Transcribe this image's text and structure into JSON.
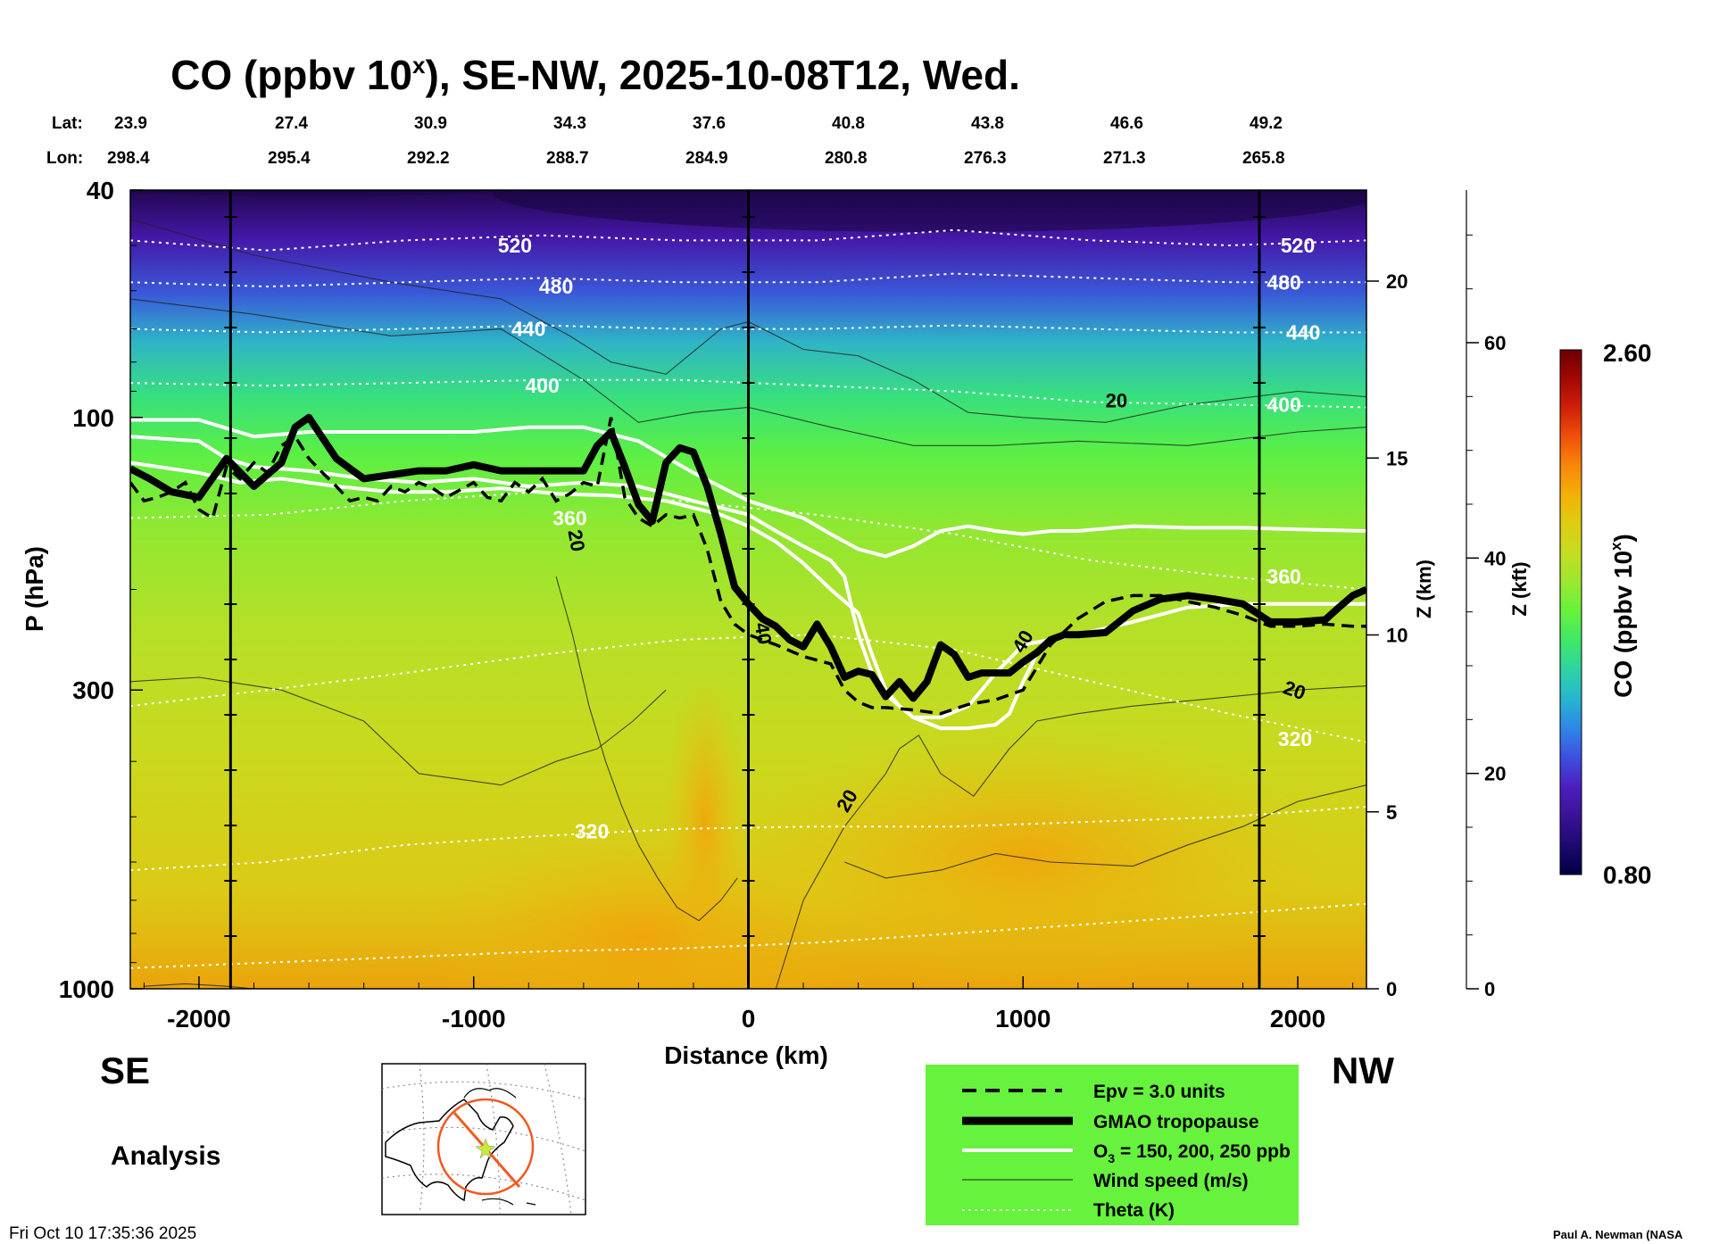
{
  "chart_data": {
    "type": "heatmap",
    "title_prefix": "CO (ppbv 10",
    "title_sup": "x",
    "title_suffix": "), SE-NW, 2025-10-08T12, Wed.",
    "xlabel": "Distance (km)",
    "ylabel": "P (hPa)",
    "z_km_label": "Z (km)",
    "z_kft_label": "Z (kft)",
    "colorbar_label_prefix": "CO (ppbv 10",
    "colorbar_label_sup": "x",
    "colorbar_label_suffix": ")",
    "colorbar_max": "2.60",
    "colorbar_min": "0.80",
    "colorbar_range": [
      0.8,
      2.6
    ],
    "xlim": [
      -2250,
      2250
    ],
    "ylim_hpa": [
      1000,
      40
    ],
    "y_scale": "log",
    "x_ticks": [
      {
        "value": -2000,
        "label": "-2000"
      },
      {
        "value": -1000,
        "label": "-1000"
      },
      {
        "value": 0,
        "label": "0"
      },
      {
        "value": 1000,
        "label": "1000"
      },
      {
        "value": 2000,
        "label": "2000"
      }
    ],
    "p_ticks": [
      {
        "value": 40,
        "label": "40"
      },
      {
        "value": 100,
        "label": "100"
      },
      {
        "value": 300,
        "label": "300"
      },
      {
        "value": 1000,
        "label": "1000"
      }
    ],
    "z_km_ticks": [
      {
        "value": 0,
        "label": "0"
      },
      {
        "value": 5,
        "label": "5"
      },
      {
        "value": 10,
        "label": "10"
      },
      {
        "value": 15,
        "label": "15"
      },
      {
        "value": 20,
        "label": "20"
      }
    ],
    "z_kft_ticks": [
      {
        "value": 0,
        "label": "0"
      },
      {
        "value": 20,
        "label": "20"
      },
      {
        "value": 40,
        "label": "40"
      },
      {
        "value": 60,
        "label": "60"
      }
    ],
    "lat_label": "Lat:",
    "lon_label": "Lon:",
    "lat_values": [
      "23.9",
      "27.4",
      "30.9",
      "34.3",
      "37.6",
      "40.8",
      "43.8",
      "46.6",
      "49.2"
    ],
    "lon_values": [
      "298.4",
      "295.4",
      "292.2",
      "288.7",
      "284.9",
      "280.8",
      "276.3",
      "271.3",
      "265.8"
    ],
    "theta_contours": [
      {
        "label": "520",
        "p": [
          49,
          51,
          49,
          48,
          49,
          49,
          47,
          49,
          50,
          49
        ]
      },
      {
        "label": "480",
        "p": [
          58,
          59,
          58,
          57,
          58,
          58,
          56,
          57,
          58,
          58
        ]
      },
      {
        "label": "440",
        "p": [
          70,
          71,
          70,
          69,
          70,
          70,
          69,
          70,
          71,
          71
        ]
      },
      {
        "label": "400",
        "p": [
          87,
          88,
          87,
          86,
          86,
          88,
          90,
          94,
          95,
          96
        ]
      },
      {
        "label": "360",
        "p": [
          150,
          148,
          140,
          135,
          140,
          148,
          160,
          178,
          190,
          200
        ]
      },
      {
        "label": "320",
        "p": [
          320,
          300,
          280,
          260,
          245,
          240,
          255,
          290,
          330,
          370
        ]
      },
      {
        "label": "320",
        "p": [
          620,
          600,
          560,
          540,
          525,
          520,
          520,
          510,
          500,
          480
        ]
      },
      {
        "label": "",
        "p": [
          920,
          900,
          880,
          860,
          850,
          830,
          800,
          770,
          740,
          710
        ]
      }
    ],
    "theta_x": [
      -2250,
      -1750,
      -1250,
      -750,
      -250,
      250,
      750,
      1250,
      1750,
      2250
    ],
    "tropopause": {
      "name": "GMAO tropopause",
      "x": [
        -2250,
        -2180,
        -2100,
        -2000,
        -1900,
        -1800,
        -1700,
        -1650,
        -1600,
        -1500,
        -1400,
        -1300,
        -1200,
        -1100,
        -1000,
        -900,
        -800,
        -700,
        -600,
        -550,
        -500,
        -450,
        -400,
        -350,
        -300,
        -250,
        -200,
        -150,
        -100,
        -50,
        0,
        50,
        100,
        150,
        200,
        250,
        300,
        350,
        400,
        450,
        500,
        550,
        600,
        650,
        700,
        750,
        800,
        850,
        900,
        950,
        1000,
        1050,
        1100,
        1150,
        1200,
        1300,
        1400,
        1500,
        1600,
        1700,
        1800,
        1900,
        2000,
        2100,
        2150,
        2200,
        2250
      ],
      "p": [
        123,
        128,
        135,
        138,
        118,
        132,
        120,
        104,
        100,
        118,
        128,
        126,
        124,
        124,
        121,
        124,
        124,
        124,
        124,
        112,
        106,
        122,
        142,
        152,
        120,
        113,
        115,
        132,
        160,
        198,
        212,
        225,
        232,
        245,
        252,
        230,
        252,
        285,
        278,
        282,
        308,
        290,
        310,
        290,
        250,
        260,
        285,
        280,
        280,
        280,
        268,
        258,
        245,
        240,
        240,
        238,
        218,
        208,
        205,
        208,
        212,
        228,
        228,
        226,
        215,
        205,
        200
      ]
    },
    "epv": {
      "name": "Epv = 3.0 units",
      "x": [
        -2250,
        -2200,
        -2150,
        -2100,
        -2050,
        -2000,
        -1950,
        -1900,
        -1850,
        -1800,
        -1750,
        -1700,
        -1650,
        -1600,
        -1550,
        -1500,
        -1450,
        -1400,
        -1350,
        -1300,
        -1250,
        -1200,
        -1150,
        -1100,
        -1050,
        -1000,
        -950,
        -900,
        -850,
        -800,
        -750,
        -700,
        -650,
        -600,
        -550,
        -500,
        -450,
        -400,
        -350,
        -300,
        -250,
        -200,
        -150,
        -100,
        -50,
        0,
        100,
        200,
        300,
        350,
        400,
        450,
        500,
        600,
        700,
        800,
        900,
        1000,
        1100,
        1200,
        1300,
        1400,
        1500,
        1600,
        1700,
        1800,
        1900,
        2000,
        2100,
        2200,
        2250
      ],
      "p": [
        130,
        140,
        138,
        135,
        130,
        145,
        150,
        122,
        128,
        120,
        125,
        112,
        108,
        118,
        125,
        132,
        140,
        138,
        140,
        132,
        135,
        130,
        133,
        138,
        134,
        130,
        138,
        140,
        130,
        135,
        128,
        140,
        136,
        130,
        132,
        100,
        138,
        150,
        155,
        148,
        150,
        148,
        170,
        210,
        230,
        240,
        250,
        262,
        270,
        300,
        315,
        322,
        322,
        325,
        330,
        318,
        312,
        300,
        250,
        225,
        210,
        205,
        205,
        210,
        215,
        222,
        232,
        232,
        230,
        232,
        232
      ]
    },
    "o3_contours": [
      {
        "label": "150 ppb",
        "x": [
          -2250,
          -2000,
          -1800,
          -1600,
          -1400,
          -1200,
          -1000,
          -800,
          -600,
          -400,
          -200,
          0,
          200,
          300,
          400,
          500,
          600,
          700,
          800,
          900,
          1000,
          1100,
          1200,
          1400,
          1600,
          1800,
          2000,
          2250
        ],
        "p": [
          101,
          101,
          108,
          106,
          106,
          106,
          106,
          104,
          104,
          110,
          125,
          140,
          150,
          160,
          170,
          175,
          168,
          158,
          155,
          158,
          160,
          158,
          158,
          155,
          156,
          156,
          157,
          158
        ]
      },
      {
        "label": "200 ppb",
        "x": [
          -2250,
          -2000,
          -1900,
          -1800,
          -1600,
          -1400,
          -1200,
          -1000,
          -800,
          -600,
          -400,
          -200,
          0,
          100,
          200,
          300,
          350,
          400,
          450,
          500,
          550,
          600,
          700,
          800,
          850,
          900,
          950,
          1000,
          1100,
          1200,
          1400,
          1600,
          1800,
          2000,
          2250
        ],
        "p": [
          108,
          110,
          118,
          122,
          124,
          128,
          130,
          128,
          132,
          130,
          132,
          140,
          148,
          158,
          168,
          178,
          190,
          240,
          280,
          305,
          320,
          335,
          335,
          320,
          300,
          280,
          265,
          250,
          245,
          240,
          228,
          215,
          212,
          212,
          212
        ]
      },
      {
        "label": "250 ppb",
        "x": [
          -2250,
          -2000,
          -1850,
          -1700,
          -1500,
          -1300,
          -1100,
          -900,
          -700,
          -500,
          -300,
          -100,
          0,
          100,
          200,
          300,
          400,
          450,
          500,
          550,
          600,
          700,
          800,
          900,
          950,
          1000,
          1050
        ],
        "p": [
          120,
          125,
          130,
          128,
          132,
          135,
          135,
          133,
          136,
          137,
          140,
          148,
          155,
          165,
          180,
          200,
          220,
          260,
          300,
          320,
          335,
          350,
          350,
          345,
          330,
          290,
          260
        ]
      }
    ],
    "wind_contour_labels": [
      "20",
      "20",
      "40",
      "40",
      "20",
      "20"
    ],
    "legend": [
      {
        "name": "Epv = 3.0 units",
        "style": "dashed-thick"
      },
      {
        "name": "GMAO tropopause",
        "style": "solid-very-thick"
      },
      {
        "name_prefix": "O",
        "name_sub": "3",
        "name_suffix": " = 150, 200, 250 ppb",
        "style": "white-thick"
      },
      {
        "name": "Wind speed (m/s)",
        "style": "thin-black"
      },
      {
        "name": "Theta (K)",
        "style": "dotted-white"
      }
    ],
    "colors": {
      "legend_bg": "#66f23d",
      "cmap": [
        "#000045",
        "#1d0a70",
        "#3a1295",
        "#4b1fc0",
        "#3e4ee0",
        "#2f86e6",
        "#28b4cf",
        "#2dd3a3",
        "#3fe76a",
        "#66f23d",
        "#9ae830",
        "#c4dd22",
        "#dcce13",
        "#f2b208",
        "#f9870a",
        "#f0520a",
        "#d02008",
        "#a30804",
        "#6c0000"
      ]
    }
  },
  "labels": {
    "se": "SE",
    "nw": "NW",
    "analysis": "Analysis",
    "timestamp": "Fri Oct 10 17:35:36 2025",
    "credit": "Paul A. Newman (NASA"
  },
  "map": {
    "icons": [
      "globe-map-icon",
      "target-circle-icon",
      "section-line-icon",
      "center-point-icon"
    ]
  }
}
